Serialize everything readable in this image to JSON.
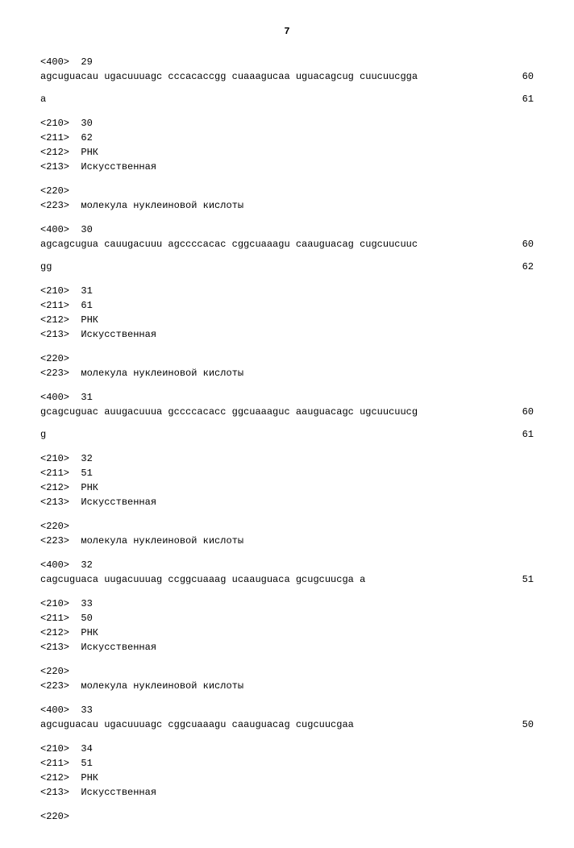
{
  "page_number": "7",
  "seq29_400": "<400>  29",
  "seq29_line1": "agcuguacau ugacuuuagc cccacaccgg cuaaagucaa uguacagcug cuucuucgga",
  "seq29_count1": "60",
  "seq29_line2": "a",
  "seq29_count2": "61",
  "seq30_210": "<210>  30",
  "seq30_211": "<211>  62",
  "seq30_212": "<212>  РНК",
  "seq30_213": "<213>  Искусственная",
  "seq30_220": "<220>",
  "seq30_223": "<223>  молекула нуклеиновой кислоты",
  "seq30_400": "<400>  30",
  "seq30_line1": "agcagcugua cauugacuuu agccccacac cggcuaaagu caauguacag cugcuucuuc",
  "seq30_count1": "60",
  "seq30_line2": "gg",
  "seq30_count2": "62",
  "seq31_210": "<210>  31",
  "seq31_211": "<211>  61",
  "seq31_212": "<212>  РНК",
  "seq31_213": "<213>  Искусственная",
  "seq31_220": "<220>",
  "seq31_223": "<223>  молекула нуклеиновой кислоты",
  "seq31_400": "<400>  31",
  "seq31_line1": "gcagcuguac auugacuuua gccccacacc ggcuaaaguc aauguacagc ugcuucuucg",
  "seq31_count1": "60",
  "seq31_line2": "g",
  "seq31_count2": "61",
  "seq32_210": "<210>  32",
  "seq32_211": "<211>  51",
  "seq32_212": "<212>  РНК",
  "seq32_213": "<213>  Искусственная",
  "seq32_220": "<220>",
  "seq32_223": "<223>  молекула нуклеиновой кислоты",
  "seq32_400": "<400>  32",
  "seq32_line1": "cagcuguaca uugacuuuag ccggcuaaag ucaauguaca gcugcuucga a",
  "seq32_count1": "51",
  "seq33_210": "<210>  33",
  "seq33_211": "<211>  50",
  "seq33_212": "<212>  РНК",
  "seq33_213": "<213>  Искусственная",
  "seq33_220": "<220>",
  "seq33_223": "<223>  молекула нуклеиновой кислоты",
  "seq33_400": "<400>  33",
  "seq33_line1": "agcuguacau ugacuuuagc cggcuaaagu caauguacag cugcuucgaa",
  "seq33_count1": "50",
  "seq34_210": "<210>  34",
  "seq34_211": "<211>  51",
  "seq34_212": "<212>  РНК",
  "seq34_213": "<213>  Искусственная",
  "seq34_220": "<220>"
}
